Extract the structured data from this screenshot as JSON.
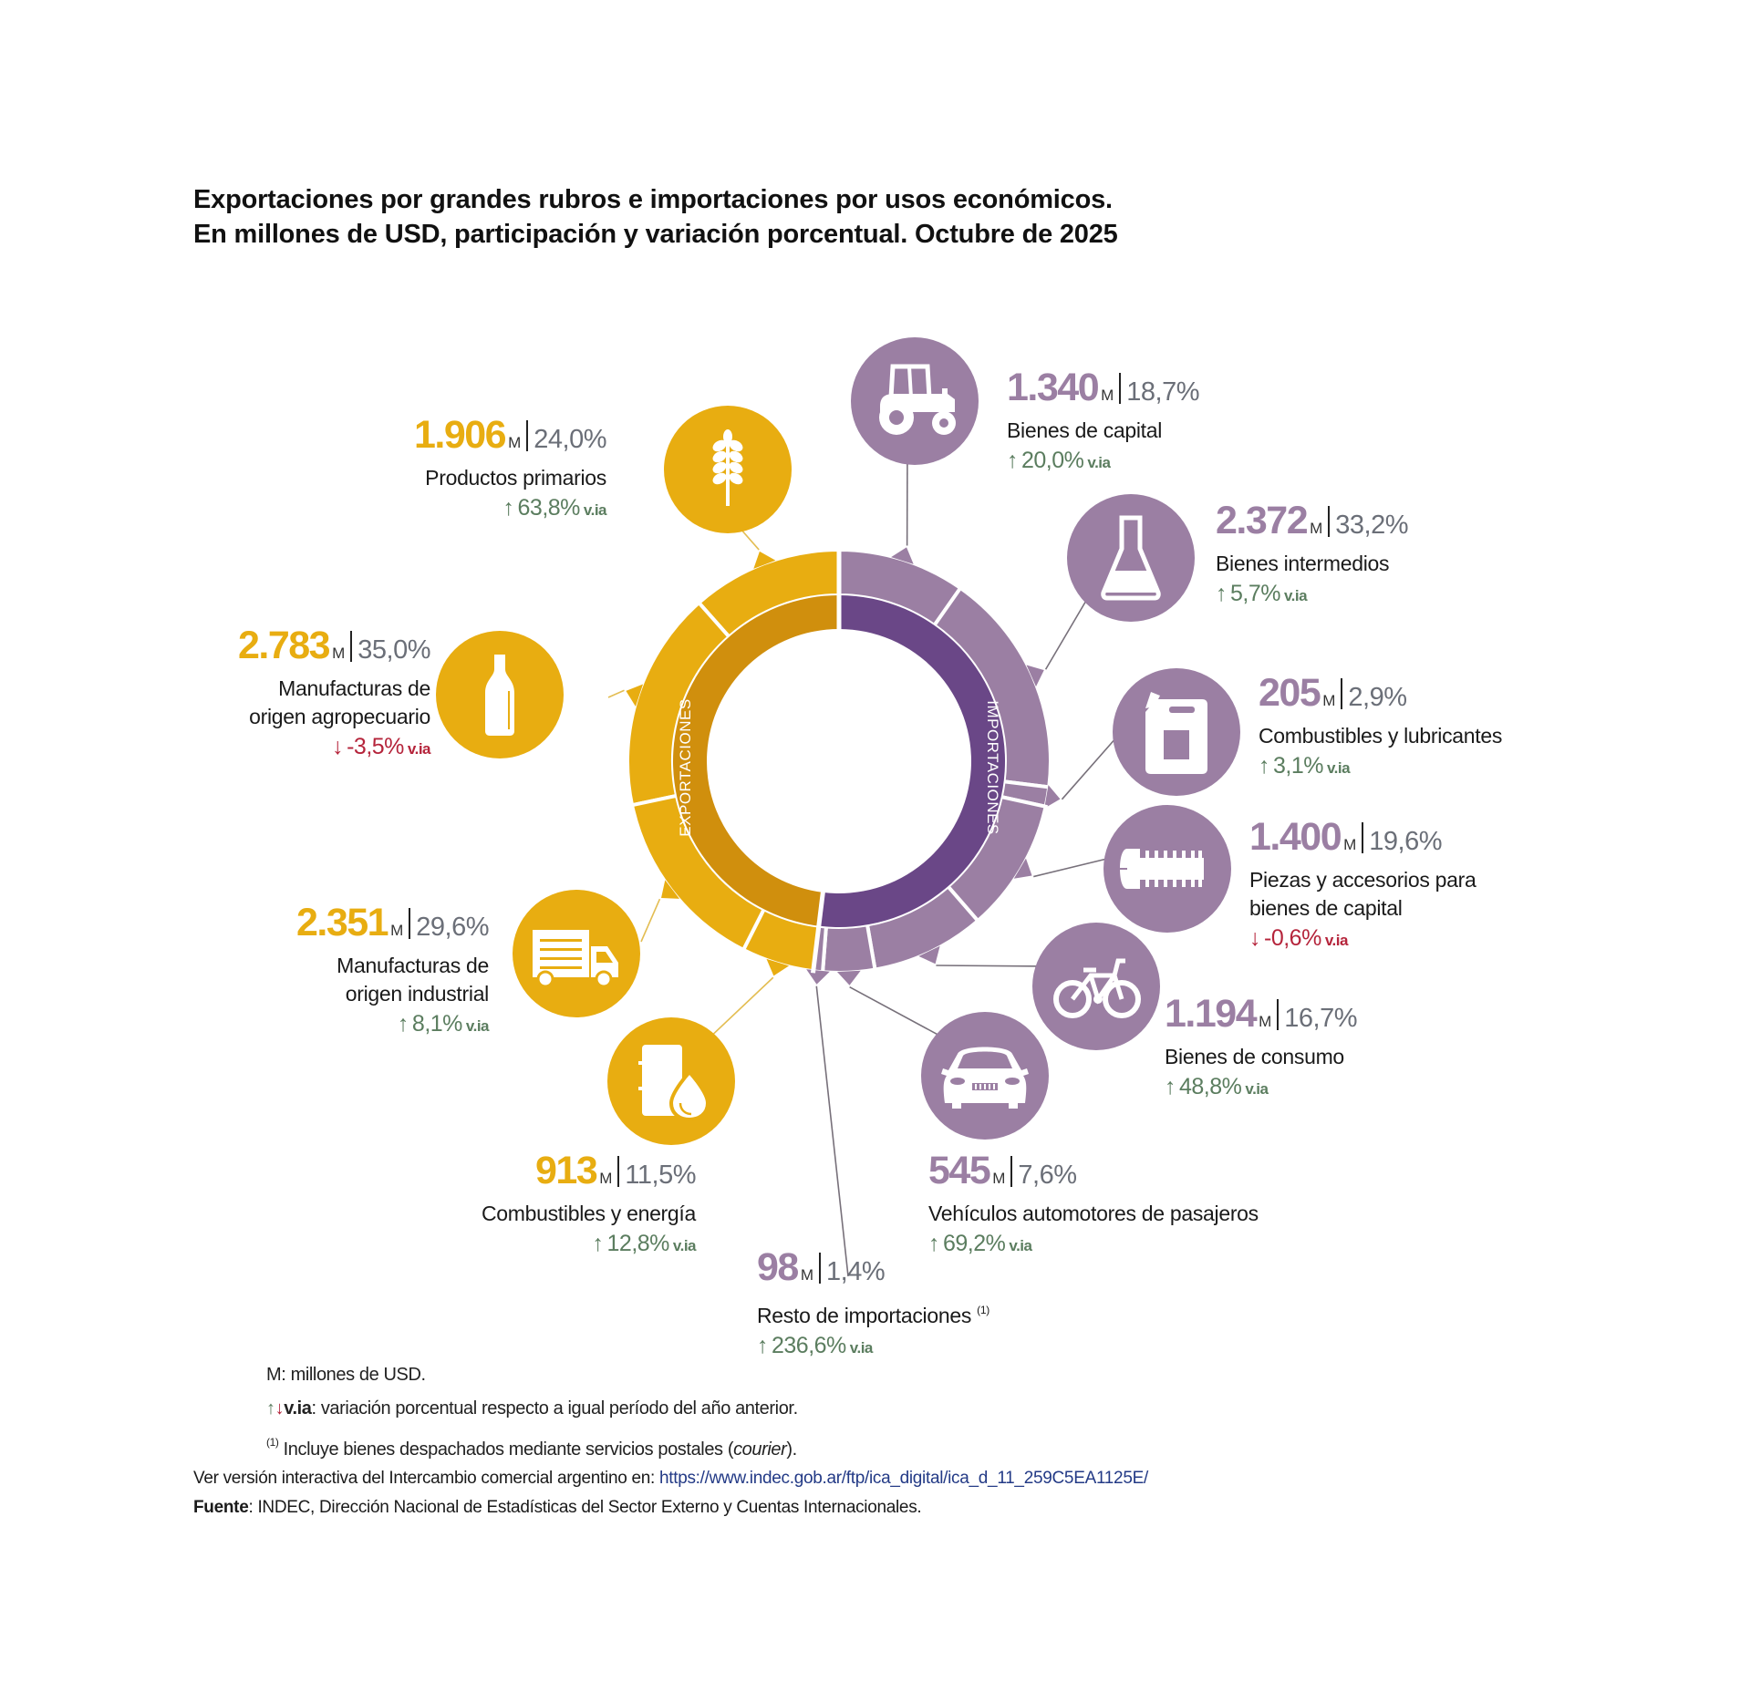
{
  "title": {
    "line1": "Exportaciones por grandes rubros e importaciones por usos económicos.",
    "line2": "En millones de USD, participación y variación porcentual. Octubre de 2025"
  },
  "unit_suffix": "M",
  "via_label": "v.ia",
  "chart_data": {
    "type": "pie",
    "title": "Exportaciones por grandes rubros e importaciones por usos económicos. En millones de USD, participación y variación porcentual. Octubre de 2025",
    "rings": [
      {
        "name": "EXPORTACIONES",
        "color": "#e8ad11",
        "inner_color": "#d08f0d"
      },
      {
        "name": "IMPORTACIONES",
        "color": "#9b7fa3",
        "inner_color": "#6a4787"
      }
    ],
    "series": [
      {
        "name": "EXPORTACIONES",
        "categories": [
          {
            "label": "Productos primarios",
            "value": 1906,
            "value_text": "1.906",
            "share": 24.0,
            "share_text": "24,0%",
            "variation": 63.8,
            "variation_text": "63,8%",
            "direction": "up",
            "icon": "wheat-icon"
          },
          {
            "label": "Manufacturas de origen agropecuario",
            "label_lines": [
              "Manufacturas de",
              "origen agropecuario"
            ],
            "value": 2783,
            "value_text": "2.783",
            "share": 35.0,
            "share_text": "35,0%",
            "variation": -3.5,
            "variation_text": "-3,5%",
            "direction": "down",
            "icon": "bottle-icon"
          },
          {
            "label": "Manufacturas de origen industrial",
            "label_lines": [
              "Manufacturas de",
              "origen industrial"
            ],
            "value": 2351,
            "value_text": "2.351",
            "share": 29.6,
            "share_text": "29,6%",
            "variation": 8.1,
            "variation_text": "8,1%",
            "direction": "up",
            "icon": "truck-icon"
          },
          {
            "label": "Combustibles y energía",
            "value": 913,
            "value_text": "913",
            "share": 11.5,
            "share_text": "11,5%",
            "variation": 12.8,
            "variation_text": "12,8%",
            "direction": "up",
            "icon": "oil-barrel-icon"
          }
        ]
      },
      {
        "name": "IMPORTACIONES",
        "categories": [
          {
            "label": "Bienes de capital",
            "value": 1340,
            "value_text": "1.340",
            "share": 18.7,
            "share_text": "18,7%",
            "variation": 20.0,
            "variation_text": "20,0%",
            "direction": "up",
            "icon": "tractor-icon"
          },
          {
            "label": "Bienes intermedios",
            "value": 2372,
            "value_text": "2.372",
            "share": 33.2,
            "share_text": "33,2%",
            "variation": 5.7,
            "variation_text": "5,7%",
            "direction": "up",
            "icon": "flask-icon"
          },
          {
            "label": "Combustibles y lubricantes",
            "value": 205,
            "value_text": "205",
            "share": 2.9,
            "share_text": "2,9%",
            "variation": 3.1,
            "variation_text": "3,1%",
            "direction": "up",
            "icon": "jerrycan-icon"
          },
          {
            "label": "Piezas y accesorios para bienes de capital",
            "label_lines": [
              "Piezas y accesorios para",
              "bienes de capital"
            ],
            "value": 1400,
            "value_text": "1.400",
            "share": 19.6,
            "share_text": "19,6%",
            "variation": -0.6,
            "variation_text": "-0,6%",
            "direction": "down",
            "icon": "screw-icon"
          },
          {
            "label": "Bienes de consumo",
            "value": 1194,
            "value_text": "1.194",
            "share": 16.7,
            "share_text": "16,7%",
            "variation": 48.8,
            "variation_text": "48,8%",
            "direction": "up",
            "icon": "bicycle-icon"
          },
          {
            "label": "Vehículos automotores de pasajeros",
            "value": 545,
            "value_text": "545",
            "share": 7.6,
            "share_text": "7,6%",
            "variation": 69.2,
            "variation_text": "69,2%",
            "direction": "up",
            "icon": "car-icon"
          },
          {
            "label": "Resto de importaciones",
            "footnote": "(1)",
            "value": 98,
            "value_text": "98",
            "share": 1.4,
            "share_text": "1,4%",
            "variation": 236.6,
            "variation_text": "236,6%",
            "direction": "up",
            "icon": null
          }
        ]
      }
    ]
  },
  "notes": {
    "unit": "M: millones de USD.",
    "via_bold": "v.ia",
    "via_desc": ": variación porcentual respecto a igual período del año anterior.",
    "footnote_mark": "(1)",
    "footnote_text": " Incluye bienes despachados mediante servicios postales (",
    "footnote_italic": "courier",
    "footnote_end": ")."
  },
  "footer": {
    "interactive_prefix": "Ver versión interactiva del Intercambio comercial argentino en: ",
    "interactive_url": "https://www.indec.gob.ar/ftp/ica_digital/ica_d_11_259C5EA1125E/",
    "source_bold": "Fuente",
    "source_text": ": INDEC, Dirección Nacional de Estadísticas del Sector Externo y Cuentas Internacionales."
  },
  "colors": {
    "export": "#e8ad11",
    "export_inner": "#d08f0d",
    "import": "#9b7fa3",
    "import_inner": "#6a4787",
    "up": "#5b7d5f",
    "down": "#b5243b",
    "share": "#6b6f78"
  }
}
